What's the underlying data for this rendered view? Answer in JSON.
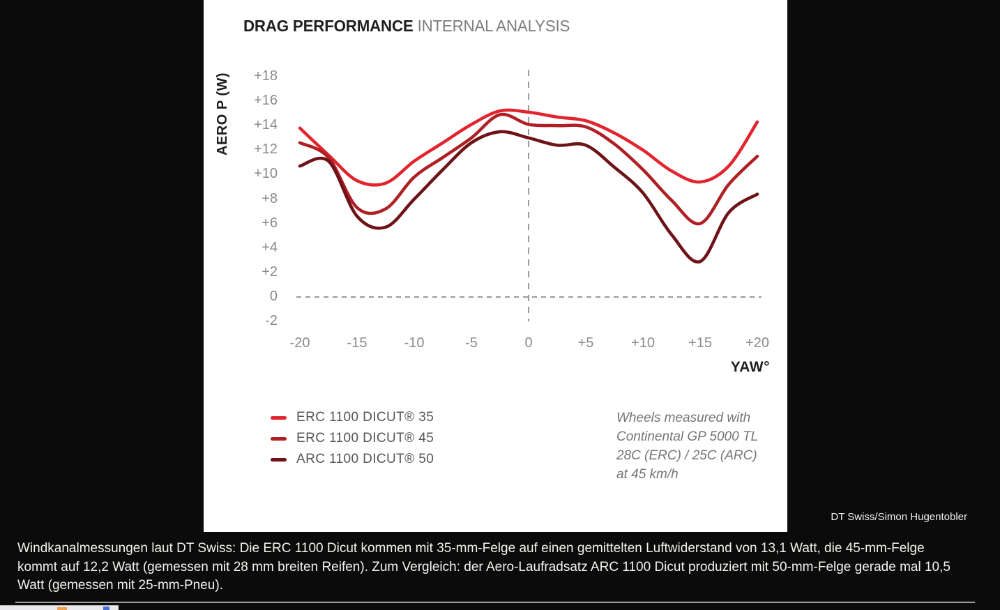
{
  "panel": {
    "title_main": "DRAG PERFORMANCE",
    "title_sub": " INTERNAL ANALYSIS"
  },
  "chart_data": {
    "type": "line",
    "title": "DRAG PERFORMANCE INTERNAL ANALYSIS",
    "xlabel": "YAW°",
    "ylabel": "AERO P (W)",
    "xlim": [
      -20,
      20
    ],
    "ylim": [
      -2,
      18
    ],
    "grid": false,
    "zero_line_dashed": true,
    "center_vertical_dashed_at_x": 0,
    "legend_position": "bottom-left",
    "x": [
      -20,
      -17.5,
      -15,
      -12.5,
      -10,
      -7.5,
      -5,
      -2.5,
      0,
      2.5,
      5,
      7.5,
      10,
      12.5,
      15,
      17.5,
      20
    ],
    "series": [
      {
        "name": "ERC 1100 DICUT® 35",
        "color": "#e2242e",
        "values": [
          13.8,
          11.6,
          9.5,
          9.3,
          11.1,
          12.6,
          14.1,
          15.2,
          15.1,
          14.7,
          14.4,
          13.4,
          12.0,
          10.3,
          9.4,
          10.7,
          14.3
        ]
      },
      {
        "name": "ERC 1100 DICUT® 45",
        "color": "#ae2025",
        "values": [
          12.6,
          11.4,
          7.3,
          7.2,
          9.8,
          11.4,
          13.0,
          14.9,
          14.1,
          14.0,
          13.9,
          12.5,
          10.4,
          7.9,
          6.0,
          9.2,
          11.5
        ]
      },
      {
        "name": "ARC 1100 DICUT® 50",
        "color": "#6d1216",
        "values": [
          10.7,
          11.1,
          6.6,
          5.7,
          8.0,
          10.4,
          12.6,
          13.5,
          13.0,
          12.4,
          12.4,
          10.6,
          8.5,
          5.1,
          2.9,
          6.9,
          8.4
        ]
      }
    ],
    "x_tick_labels": [
      "-20",
      "-15",
      "-10",
      "-5",
      "0",
      "+5",
      "+10",
      "+15",
      "+20"
    ],
    "x_tick_values": [
      -20,
      -15,
      -10,
      -5,
      0,
      5,
      10,
      15,
      20
    ],
    "y_tick_labels": [
      "+18",
      "+16",
      "+14",
      "+12",
      "+10",
      "+8",
      "+6",
      "+4",
      "+2",
      "0",
      "-2"
    ],
    "y_tick_values": [
      18,
      16,
      14,
      12,
      10,
      8,
      6,
      4,
      2,
      0,
      -2
    ],
    "annotation_lines": [
      "Wheels measured with",
      "Continental GP 5000 TL",
      "28C (ERC) / 25C (ARC)",
      "at 45 km/h"
    ]
  },
  "axes": {
    "y_title": "AERO P (W)",
    "x_title": "YAW°"
  },
  "credit": "DT Swiss/Simon Hugentobler",
  "caption": "Windkanalmessungen laut DT Swiss: Die ERC 1100 Dicut kommen mit 35-mm-Felge auf einen gemittelten Luftwiderstand von 13,1 Watt, die 45-mm-Felge kommt auf 12,2 Watt (gemessen mit 28 mm breiten Reifen). Zum Vergleich: der Aero-Laufradsatz ARC 1100 Dicut produziert mit 50-mm-Felge gerade mal 10,5 Watt (gemessen mit 25-mm-Pneu).",
  "colors": {
    "page_background": "#0b0b0b",
    "panel_background": "#ffffff",
    "dashed_lines": "#9a9a9a",
    "tick_text": "#8a8a8a",
    "caption_text": "#f3f3ee"
  }
}
